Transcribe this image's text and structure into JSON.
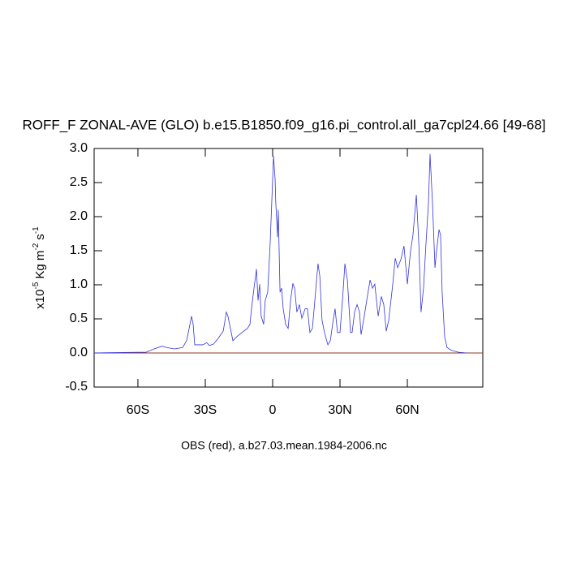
{
  "chart_data": {
    "type": "line",
    "title": "ROFF_F ZONAL-AVE (GLO) b.e15.B1850.f09_g16.pi_control.all_ga7cpl24.66 [49-68]",
    "xlabel": "OBS (red), a.b27.03.mean.1984-2006.nc",
    "ylabel": [
      "x10",
      "-5",
      "Kg m",
      "-2",
      "s",
      "-1"
    ],
    "xlim": [
      -79.5,
      93.6
    ],
    "ylim": [
      -0.5,
      3.0
    ],
    "xticks": [
      {
        "value": -60,
        "label": "60S"
      },
      {
        "value": -30,
        "label": "30S"
      },
      0,
      {
        "value": 30,
        "label": "30N"
      },
      {
        "value": 60,
        "label": "60N"
      }
    ],
    "yticks": [
      -0.5,
      {
        "value": 0,
        "label": "0.0"
      },
      0.5,
      {
        "value": 1,
        "label": "1.0"
      },
      1.5,
      {
        "value": 2,
        "label": "2.0"
      },
      2.5,
      {
        "value": 3,
        "label": "3.0"
      }
    ],
    "x": [
      -79.5,
      -60.0,
      -56.4,
      -52.8,
      -49.2,
      -47.3,
      -43.7,
      -40.1,
      -38.3,
      -37.2,
      -36.1,
      -35.4,
      -34.7,
      -31.1,
      -29.3,
      -28.2,
      -26.4,
      -24.6,
      -22.0,
      -20.6,
      -19.9,
      -18.8,
      -17.7,
      -15.9,
      -13.7,
      -11.2,
      -10.1,
      -9.4,
      -8.3,
      -7.2,
      -6.5,
      -5.8,
      -5.1,
      -4.0,
      -3.3,
      -2.2,
      -1.1,
      -0.4,
      0.4,
      1.1,
      1.4,
      2.2,
      2.5,
      3.3,
      4.0,
      4.7,
      5.8,
      6.9,
      8.0,
      9.0,
      9.8,
      10.8,
      11.9,
      13.0,
      14.5,
      15.5,
      16.6,
      17.7,
      18.8,
      20.2,
      21.0,
      22.0,
      23.1,
      24.6,
      25.7,
      26.7,
      27.8,
      28.9,
      30.0,
      31.1,
      32.2,
      33.3,
      34.7,
      35.4,
      36.5,
      37.6,
      38.7,
      39.4,
      40.8,
      41.9,
      43.4,
      44.5,
      45.5,
      47.0,
      48.4,
      49.5,
      50.6,
      51.7,
      53.5,
      54.6,
      55.7,
      57.1,
      58.5,
      60.0,
      61.4,
      62.5,
      64.0,
      65.1,
      66.1,
      67.2,
      68.3,
      69.4,
      70.1,
      71.2,
      72.3,
      73.0,
      74.1,
      74.8,
      75.5,
      76.6,
      77.7,
      79.5,
      82.8,
      86.4
    ],
    "series": [
      {
        "color": "#3333dd",
        "values": [
          0,
          0.01,
          0.01,
          0.06,
          0.1,
          0.08,
          0.06,
          0.08,
          0.18,
          0.36,
          0.54,
          0.42,
          0.12,
          0.12,
          0.15,
          0.11,
          0.13,
          0.2,
          0.32,
          0.6,
          0.54,
          0.36,
          0.18,
          0.24,
          0.3,
          0.36,
          0.42,
          0.65,
          0.95,
          1.23,
          0.77,
          1.01,
          0.54,
          0.42,
          0.77,
          0.89,
          1.61,
          2.2,
          2.89,
          2.55,
          2.2,
          1.7,
          2.1,
          0.89,
          0.95,
          0.65,
          0.42,
          0.36,
          0.77,
          1.02,
          0.95,
          0.6,
          0.71,
          0.51,
          0.65,
          0.65,
          0.3,
          0.36,
          0.77,
          1.31,
          1.13,
          0.48,
          0.3,
          0.12,
          0.18,
          0.42,
          0.65,
          0.3,
          0.3,
          0.77,
          1.31,
          1.07,
          0.3,
          0.3,
          0.6,
          0.71,
          0.6,
          0.27,
          0.54,
          0.77,
          1.07,
          0.95,
          1.01,
          0.54,
          0.83,
          0.71,
          0.32,
          0.48,
          1.01,
          1.39,
          1.25,
          1.37,
          1.57,
          1.01,
          1.49,
          1.73,
          2.32,
          1.61,
          0.6,
          0.95,
          1.61,
          2.2,
          2.92,
          2.2,
          1.25,
          1.49,
          1.81,
          1.73,
          0.89,
          0.24,
          0.08,
          0.04,
          0.01,
          0
        ]
      }
    ]
  }
}
